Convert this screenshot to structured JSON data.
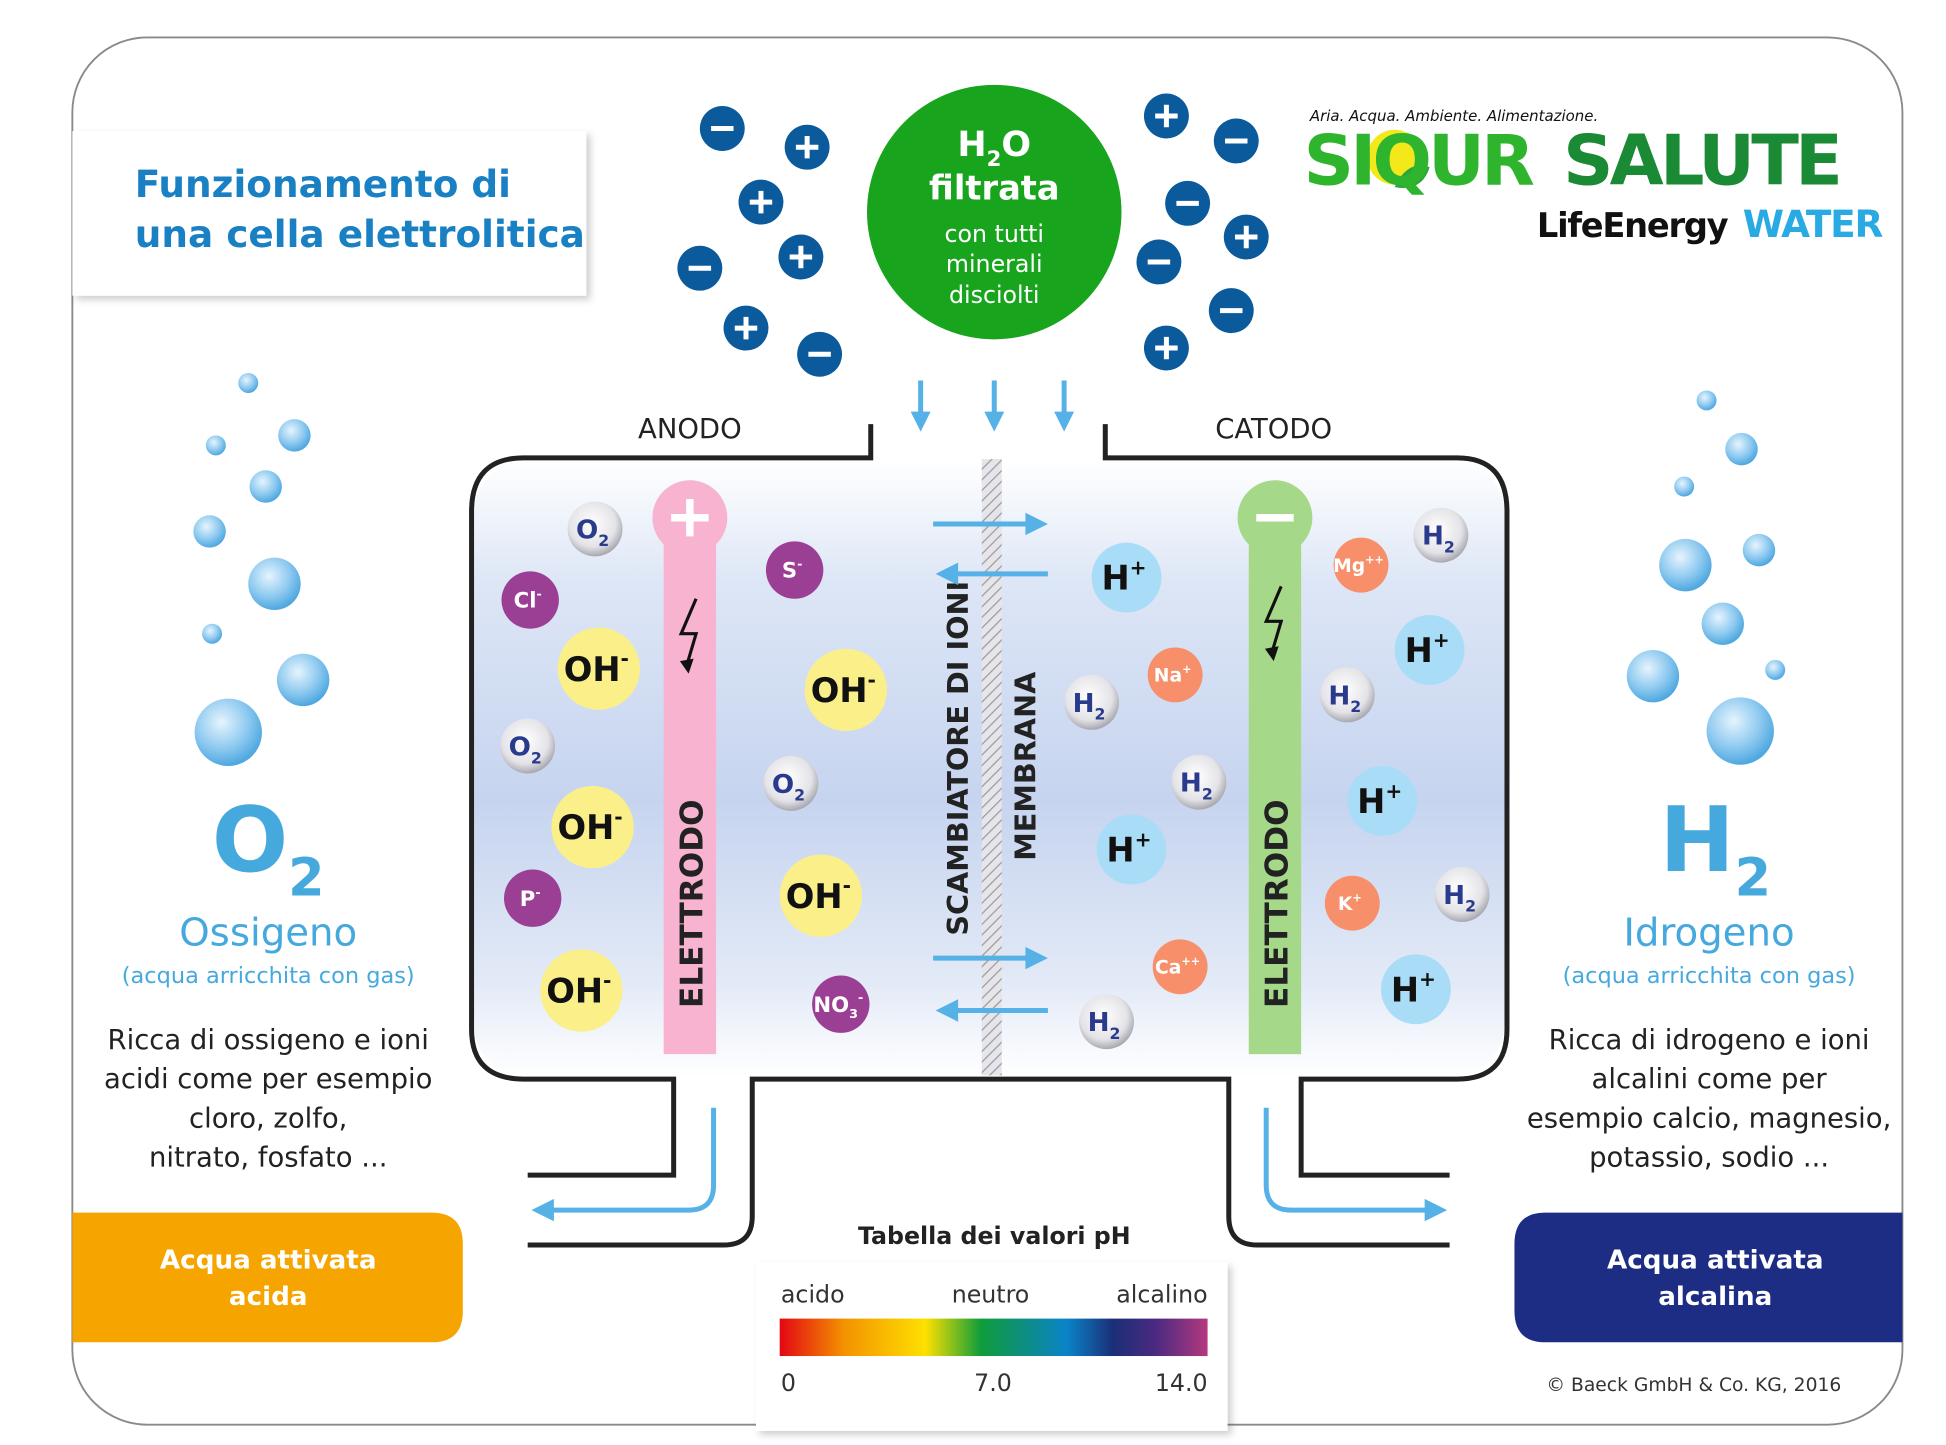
{
  "title": {
    "line1": "Funzionamento di",
    "line2": "una cella elettrolitica"
  },
  "logo": {
    "tagline": "Aria. Acqua. Ambiente. Alimentazione.",
    "brand_part1": "SIQUR",
    "brand_part2": "SALUTE",
    "sub_part1": "LifeEnergy",
    "sub_part2": "WATER"
  },
  "input_water": {
    "formula_base": "H",
    "formula_sub": "2",
    "formula_end": "O",
    "line1": "filtrata",
    "line2": "con tutti",
    "line3": "minerali",
    "line4": "disciolti"
  },
  "labels": {
    "anode": "ANODO",
    "cathode": "CATODO",
    "electrode": "ELETTRODO",
    "exchanger": "SCAMBIATORE DI IONI",
    "membrane": "MEMBRANA"
  },
  "left": {
    "gas_base": "O",
    "gas_sub": "2",
    "name": "Ossigeno",
    "note": "(acqua arricchita con gas)",
    "desc": [
      "Ricca di ossigeno e ioni",
      "acidi come per esempio",
      "cloro, zolfo,",
      "nitrato, fosfato ..."
    ],
    "output": [
      "Acqua attivata",
      "acida"
    ]
  },
  "right": {
    "gas_base": "H",
    "gas_sub": "2",
    "name": "Idrogeno",
    "note": "(acqua arricchita con gas)",
    "desc": [
      "Ricca di idrogeno e ioni",
      "alcalini come per",
      "esempio calcio, magnesio,",
      "potassio, sodio ..."
    ],
    "output": [
      "Acqua attivata",
      "alcalina"
    ]
  },
  "molecules": [
    {
      "base": "O",
      "sub": "2",
      "sup": "",
      "kind": "gas"
    },
    {
      "base": "O",
      "sub": "2",
      "sup": "",
      "kind": "gas"
    },
    {
      "base": "O",
      "sub": "2",
      "sup": "",
      "kind": "gas"
    },
    {
      "base": "Cl",
      "sub": "",
      "sup": "-",
      "kind": "anion"
    },
    {
      "base": "S",
      "sub": "",
      "sup": "-",
      "kind": "anion"
    },
    {
      "base": "P",
      "sub": "",
      "sup": "-",
      "kind": "anion"
    },
    {
      "base": "NO",
      "sub": "3",
      "sup": "-",
      "kind": "anion"
    },
    {
      "base": "OH",
      "sub": "",
      "sup": "-",
      "kind": "hydroxide"
    },
    {
      "base": "OH",
      "sub": "",
      "sup": "-",
      "kind": "hydroxide"
    },
    {
      "base": "OH",
      "sub": "",
      "sup": "-",
      "kind": "hydroxide"
    },
    {
      "base": "OH",
      "sub": "",
      "sup": "-",
      "kind": "hydroxide"
    },
    {
      "base": "OH",
      "sub": "",
      "sup": "-",
      "kind": "hydroxide"
    },
    {
      "base": "H",
      "sub": "",
      "sup": "+",
      "kind": "proton"
    },
    {
      "base": "H",
      "sub": "",
      "sup": "+",
      "kind": "proton"
    },
    {
      "base": "H",
      "sub": "",
      "sup": "+",
      "kind": "proton"
    },
    {
      "base": "H",
      "sub": "",
      "sup": "+",
      "kind": "proton"
    },
    {
      "base": "H",
      "sub": "",
      "sup": "+",
      "kind": "proton"
    },
    {
      "base": "H",
      "sub": "2",
      "sup": "",
      "kind": "gas"
    },
    {
      "base": "H",
      "sub": "2",
      "sup": "",
      "kind": "gas"
    },
    {
      "base": "H",
      "sub": "2",
      "sup": "",
      "kind": "gas"
    },
    {
      "base": "H",
      "sub": "2",
      "sup": "",
      "kind": "gas"
    },
    {
      "base": "H",
      "sub": "2",
      "sup": "",
      "kind": "gas"
    },
    {
      "base": "H",
      "sub": "2",
      "sup": "",
      "kind": "gas"
    },
    {
      "base": "Na",
      "sub": "",
      "sup": "+",
      "kind": "cation"
    },
    {
      "base": "Mg",
      "sub": "",
      "sup": "++",
      "kind": "cation"
    },
    {
      "base": "K",
      "sub": "",
      "sup": "+",
      "kind": "cation"
    },
    {
      "base": "Ca",
      "sub": "",
      "sup": "++",
      "kind": "cation"
    }
  ],
  "ph_table": {
    "title": "Tabella dei valori pH",
    "acid": "acido",
    "neutral": "neutro",
    "alkaline": "alcalino",
    "min": "0",
    "mid": "7.0",
    "max": "14.0"
  },
  "copyright": "© Baeck GmbH & Co. KG, 2016",
  "colors": {
    "title_blue": "#1a80c4",
    "ion_blue": "#0b5a9c",
    "green": "#18a51d",
    "acid_orange": "#f6a400",
    "alkaline_navy": "#1d2d84",
    "arrow_blue": "#56b1e6",
    "gas_text": "#46a9de"
  }
}
